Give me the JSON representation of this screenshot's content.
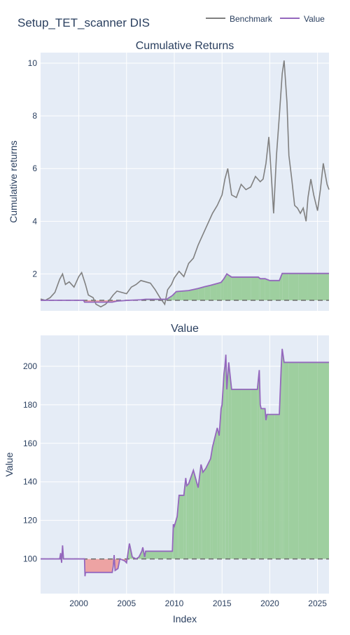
{
  "title": "Setup_TET_scanner DIS",
  "legend": {
    "placement": "top-right",
    "items": [
      {
        "name": "Benchmark",
        "color": "#808080"
      },
      {
        "name": "Value",
        "color": "#9467bd"
      }
    ]
  },
  "colors": {
    "plot_bg": "#e5ecf6",
    "grid": "#ffffff",
    "benchmark": "#808080",
    "value": "#9467bd",
    "gain_fill": "#9ecf9f",
    "loss_fill": "#eda3a3",
    "baseline": "#6b6b6b",
    "text": "#2a3f5f"
  },
  "chart_data": [
    {
      "type": "line",
      "title": "Cumulative Returns",
      "xlabel": "",
      "ylabel": "Cumulative returns",
      "xlim": [
        1996.0,
        2026.2
      ],
      "ylim": [
        0.6,
        10.4
      ],
      "yticks": [
        2,
        4,
        6,
        8,
        10
      ],
      "xticks": [
        2000,
        2005,
        2010,
        2015,
        2020,
        2025
      ],
      "grid": true,
      "baseline": 1,
      "series": [
        {
          "name": "Benchmark",
          "x": [
            1996.0,
            1996.5,
            1997.0,
            1997.5,
            1998.0,
            1998.3,
            1998.6,
            1999.0,
            1999.5,
            2000.0,
            2000.3,
            2000.7,
            2001.0,
            2001.5,
            2001.8,
            2002.3,
            2002.8,
            2003.2,
            2003.6,
            2004.0,
            2004.5,
            2005.0,
            2005.5,
            2006.0,
            2006.5,
            2007.0,
            2007.5,
            2008.0,
            2008.5,
            2009.0,
            2009.3,
            2009.7,
            2010.0,
            2010.5,
            2011.0,
            2011.5,
            2012.0,
            2012.5,
            2013.0,
            2013.5,
            2014.0,
            2014.5,
            2015.0,
            2015.3,
            2015.6,
            2016.0,
            2016.5,
            2017.0,
            2017.5,
            2018.0,
            2018.5,
            2019.0,
            2019.3,
            2019.6,
            2019.9,
            2020.2,
            2020.4,
            2020.7,
            2021.0,
            2021.3,
            2021.5,
            2021.8,
            2022.0,
            2022.3,
            2022.6,
            2022.9,
            2023.2,
            2023.5,
            2023.8,
            2024.0,
            2024.3,
            2024.6,
            2025.0,
            2025.3,
            2025.6,
            2026.0,
            2026.2
          ],
          "y": [
            1.05,
            1.0,
            1.1,
            1.3,
            1.8,
            2.0,
            1.6,
            1.7,
            1.5,
            1.9,
            2.05,
            1.6,
            1.2,
            1.1,
            0.85,
            0.75,
            0.85,
            1.0,
            1.2,
            1.35,
            1.3,
            1.25,
            1.5,
            1.6,
            1.75,
            1.7,
            1.65,
            1.4,
            1.1,
            0.85,
            1.4,
            1.6,
            1.85,
            2.1,
            1.9,
            2.4,
            2.6,
            3.1,
            3.5,
            3.9,
            4.3,
            4.6,
            5.0,
            5.6,
            6.0,
            5.0,
            4.9,
            5.4,
            5.2,
            5.3,
            5.7,
            5.5,
            5.6,
            6.2,
            7.2,
            5.5,
            4.3,
            6.5,
            8.0,
            9.6,
            10.1,
            8.5,
            6.5,
            5.6,
            4.6,
            4.5,
            4.3,
            4.5,
            4.0,
            4.9,
            5.6,
            5.0,
            4.4,
            5.2,
            6.2,
            5.4,
            5.2
          ]
        },
        {
          "name": "Value",
          "x": [
            1996.0,
            1998.0,
            2000.5,
            2000.6,
            2003.5,
            2004.0,
            2005.2,
            2006.5,
            2007.0,
            2009.2,
            2009.8,
            2010.2,
            2010.8,
            2011.5,
            2012.5,
            2013.2,
            2013.8,
            2014.4,
            2014.9,
            2015.2,
            2015.5,
            2016.0,
            2017.0,
            2018.0,
            2018.8,
            2019.0,
            2019.5,
            2020.0,
            2021.0,
            2021.3,
            2022.0,
            2023.0,
            2024.0,
            2025.0,
            2026.2
          ],
          "y": [
            1.0,
            1.0,
            1.0,
            0.93,
            0.93,
            0.97,
            1.0,
            1.02,
            1.04,
            1.04,
            1.18,
            1.33,
            1.35,
            1.37,
            1.45,
            1.52,
            1.57,
            1.63,
            1.68,
            1.82,
            2.0,
            1.88,
            1.88,
            1.88,
            1.88,
            1.82,
            1.82,
            1.75,
            1.75,
            2.02,
            2.02,
            2.02,
            2.02,
            2.02,
            2.02
          ]
        }
      ]
    },
    {
      "type": "area",
      "title": "Value",
      "xlabel": "Index",
      "ylabel": "Value",
      "xlim": [
        1996.0,
        2026.2
      ],
      "ylim": [
        82,
        216
      ],
      "yticks": [
        100,
        120,
        140,
        160,
        180,
        200
      ],
      "xticks": [
        2000,
        2005,
        2010,
        2015,
        2020,
        2025
      ],
      "grid": true,
      "baseline": 100,
      "series": [
        {
          "name": "Value",
          "x": [
            1996.0,
            1998.0,
            1998.1,
            1998.2,
            1998.3,
            1998.4,
            1998.5,
            2000.6,
            2000.65,
            2000.7,
            2003.5,
            2003.6,
            2003.7,
            2003.8,
            2004.1,
            2004.3,
            2004.8,
            2005.0,
            2005.3,
            2005.6,
            2006.0,
            2006.3,
            2006.6,
            2006.7,
            2006.9,
            2007.0,
            2009.8,
            2009.9,
            2010.0,
            2010.3,
            2010.5,
            2011.0,
            2011.2,
            2011.3,
            2011.5,
            2012.0,
            2012.5,
            2012.8,
            2013.0,
            2013.3,
            2013.8,
            2014.0,
            2014.5,
            2014.7,
            2014.9,
            2015.0,
            2015.2,
            2015.3,
            2015.4,
            2015.5,
            2015.7,
            2016.0,
            2017.0,
            2018.0,
            2018.7,
            2018.9,
            2019.0,
            2019.1,
            2019.5,
            2019.6,
            2019.7,
            2020.5,
            2021.0,
            2021.2,
            2021.3,
            2021.5,
            2022.0,
            2023.0,
            2024.0,
            2025.0,
            2026.2
          ],
          "y": [
            100,
            100,
            103,
            98,
            107,
            100,
            100,
            100,
            91,
            93,
            93,
            96,
            102,
            94,
            95,
            100,
            99,
            98,
            108,
            101,
            100,
            101,
            104,
            106,
            101,
            104,
            104,
            118,
            117,
            122,
            133,
            133,
            142,
            138,
            139,
            146,
            137,
            149,
            145,
            147,
            152,
            158,
            168,
            164,
            178,
            180,
            196,
            200,
            206,
            188,
            202,
            188,
            188,
            188,
            188,
            198,
            180,
            178,
            178,
            172,
            175,
            175,
            175,
            200,
            209,
            202,
            202,
            202,
            202,
            202,
            202
          ]
        }
      ]
    }
  ]
}
